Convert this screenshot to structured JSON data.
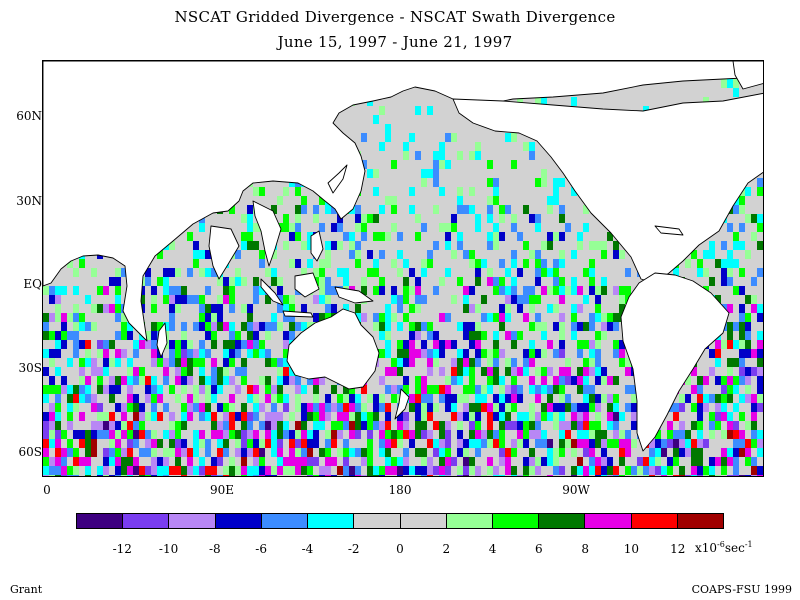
{
  "title": {
    "line1": "NSCAT Gridded Divergence - NSCAT Swath Divergence",
    "line2": "June 15, 1997 - June 21, 1997"
  },
  "map": {
    "latitude_labels": [
      "60N",
      "30N",
      "EQ",
      "30S",
      "60S"
    ],
    "longitude_labels": [
      "0",
      "90E",
      "180",
      "90W"
    ]
  },
  "colorbar": {
    "colors": [
      "#3d0080",
      "#7a3df0",
      "#b887f5",
      "#0000c8",
      "#3c8cff",
      "#00ffff",
      "#d2d2d2",
      "#d2d2d2",
      "#96ff96",
      "#00ff00",
      "#007800",
      "#e600e6",
      "#ff0000",
      "#a00000"
    ],
    "tick_labels": [
      "-12",
      "-10",
      "-8",
      "-6",
      "-4",
      "-2",
      "0",
      "2",
      "4",
      "6",
      "8",
      "10",
      "12"
    ],
    "units_prefix": "x10",
    "units_exp": "-6",
    "units_suffix": "sec",
    "units_exp2": "-1"
  },
  "footer": {
    "left": "Grant",
    "right": "COAPS-FSU 1999"
  },
  "colors": {
    "land": "#ffffff",
    "coast": "#000000",
    "neutral": "#d2d2d2"
  }
}
